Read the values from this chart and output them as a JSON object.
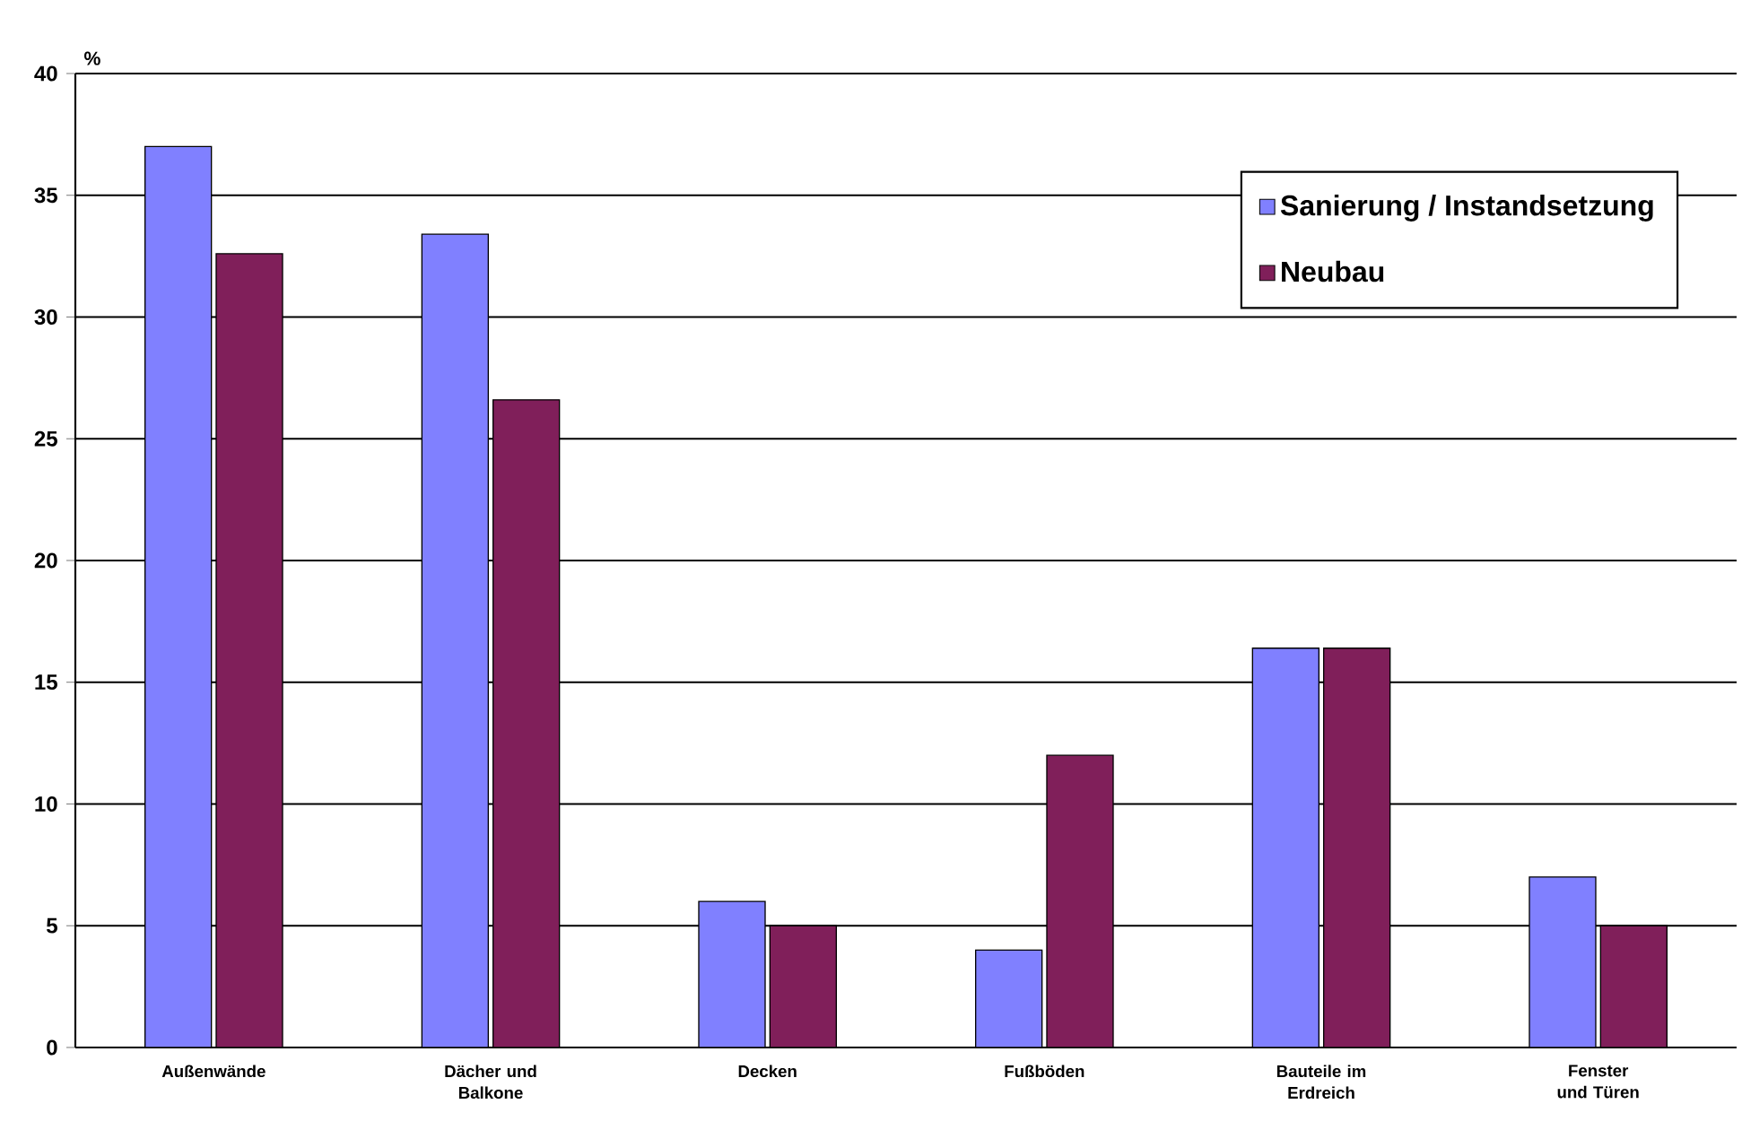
{
  "chart_data": {
    "type": "bar",
    "ylabel": "%",
    "categories": [
      "Außenwände",
      "Dächer und Balkone",
      "Decken",
      "Fußböden",
      "Bauteile im Erdreich",
      "Fenster und Türen"
    ],
    "series": [
      {
        "name": "Sanierung / Instandsetzung",
        "color": "#8080ff",
        "values": [
          37,
          33.4,
          6,
          4,
          16.4,
          7
        ]
      },
      {
        "name": "Neubau",
        "color": "#801f5a",
        "values": [
          32.6,
          26.6,
          5,
          12,
          16.4,
          5
        ]
      }
    ],
    "ylim": [
      0,
      40
    ],
    "yticks": [
      0,
      5,
      10,
      15,
      20,
      25,
      30,
      35,
      40
    ],
    "grid": "y",
    "legend": "top right"
  }
}
